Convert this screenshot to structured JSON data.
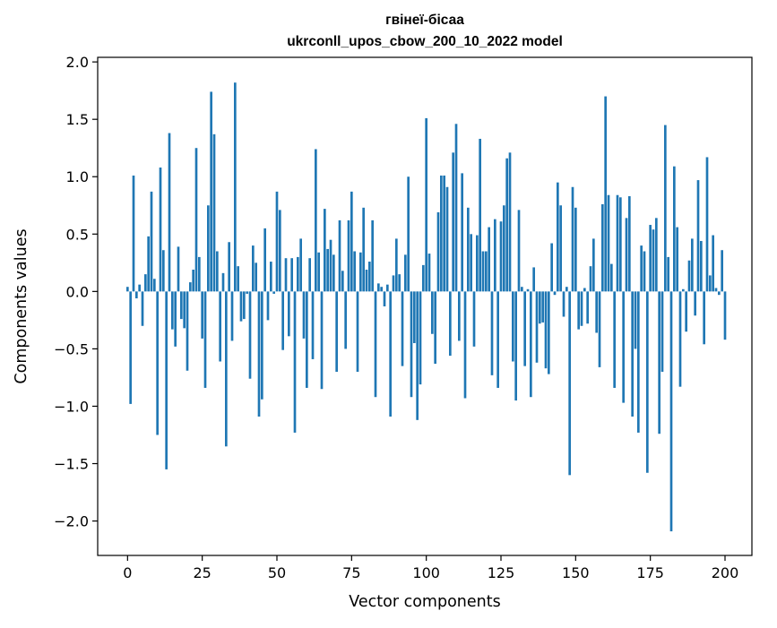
{
  "chart_data": {
    "type": "bar",
    "title": "гвінеї-бісаа",
    "subtitle": "ukrconll_upos_cbow_200_10_2022 model",
    "xlabel": "Vector components",
    "ylabel": "Components values",
    "xlim": [
      -10,
      209
    ],
    "ylim": [
      -2.3,
      2.04
    ],
    "xticks": [
      0,
      25,
      50,
      75,
      100,
      125,
      150,
      175,
      200
    ],
    "yticks": [
      -2.0,
      -1.5,
      -1.0,
      -0.5,
      0.0,
      0.5,
      1.0,
      1.5,
      2.0
    ],
    "xtick_labels": [
      "0",
      "25",
      "50",
      "75",
      "100",
      "125",
      "150",
      "175",
      "200"
    ],
    "ytick_labels": [
      "−2.0",
      "−1.5",
      "−1.0",
      "−0.5",
      "0.0",
      "0.5",
      "1.0",
      "1.5",
      "2.0"
    ],
    "bar_color": "#1f77b4",
    "grid": false,
    "legend": "none",
    "values": [
      0.04,
      -0.98,
      1.01,
      -0.06,
      0.06,
      -0.3,
      0.15,
      0.48,
      0.87,
      0.11,
      -1.25,
      1.08,
      0.36,
      -1.55,
      1.38,
      -0.33,
      -0.48,
      0.39,
      -0.24,
      -0.32,
      -0.69,
      0.08,
      0.19,
      1.25,
      0.3,
      -0.41,
      -0.84,
      0.75,
      1.74,
      1.37,
      0.35,
      -0.61,
      0.16,
      -1.35,
      0.43,
      -0.43,
      1.82,
      0.22,
      -0.26,
      -0.24,
      -0.02,
      -0.76,
      0.4,
      0.25,
      -1.09,
      -0.94,
      0.55,
      -0.25,
      0.26,
      -0.02,
      0.87,
      0.71,
      -0.51,
      0.29,
      -0.39,
      0.29,
      -1.23,
      0.3,
      0.46,
      -0.41,
      -0.84,
      0.29,
      -0.59,
      1.24,
      0.34,
      -0.85,
      0.72,
      0.37,
      0.45,
      0.32,
      -0.7,
      0.62,
      0.18,
      -0.5,
      0.62,
      0.87,
      0.35,
      -0.7,
      0.34,
      0.73,
      0.19,
      0.26,
      0.62,
      -0.92,
      0.07,
      0.04,
      -0.13,
      0.06,
      -1.09,
      0.14,
      0.46,
      0.15,
      -0.65,
      0.32,
      1.0,
      -0.92,
      -0.45,
      -1.12,
      -0.81,
      0.23,
      1.51,
      0.33,
      -0.37,
      -0.63,
      0.69,
      1.01,
      1.01,
      0.91,
      -0.56,
      1.21,
      1.46,
      -0.43,
      1.03,
      -0.93,
      0.73,
      0.5,
      -0.48,
      0.49,
      1.33,
      0.35,
      0.35,
      0.56,
      -0.73,
      0.63,
      -0.84,
      0.61,
      0.75,
      1.16,
      1.21,
      -0.61,
      -0.95,
      0.71,
      0.04,
      -0.65,
      0.02,
      -0.92,
      0.21,
      -0.62,
      -0.28,
      -0.27,
      -0.67,
      -0.72,
      0.42,
      -0.03,
      0.95,
      0.75,
      -0.22,
      0.04,
      -1.6,
      0.91,
      0.73,
      -0.33,
      -0.3,
      0.03,
      -0.28,
      0.22,
      0.46,
      -0.36,
      -0.66,
      0.76,
      1.7,
      0.84,
      0.24,
      -0.84,
      0.84,
      0.82,
      -0.97,
      0.64,
      0.83,
      -1.09,
      -0.5,
      -1.23,
      0.4,
      0.35,
      -1.58,
      0.58,
      0.54,
      0.64,
      -1.24,
      -0.7,
      1.45,
      0.3,
      -2.09,
      1.09,
      0.56,
      -0.83,
      0.02,
      -0.35,
      0.27,
      0.46,
      -0.21,
      0.97,
      0.44,
      -0.46,
      1.17,
      0.14,
      0.49,
      0.03,
      -0.03,
      0.36,
      -0.42
    ]
  }
}
